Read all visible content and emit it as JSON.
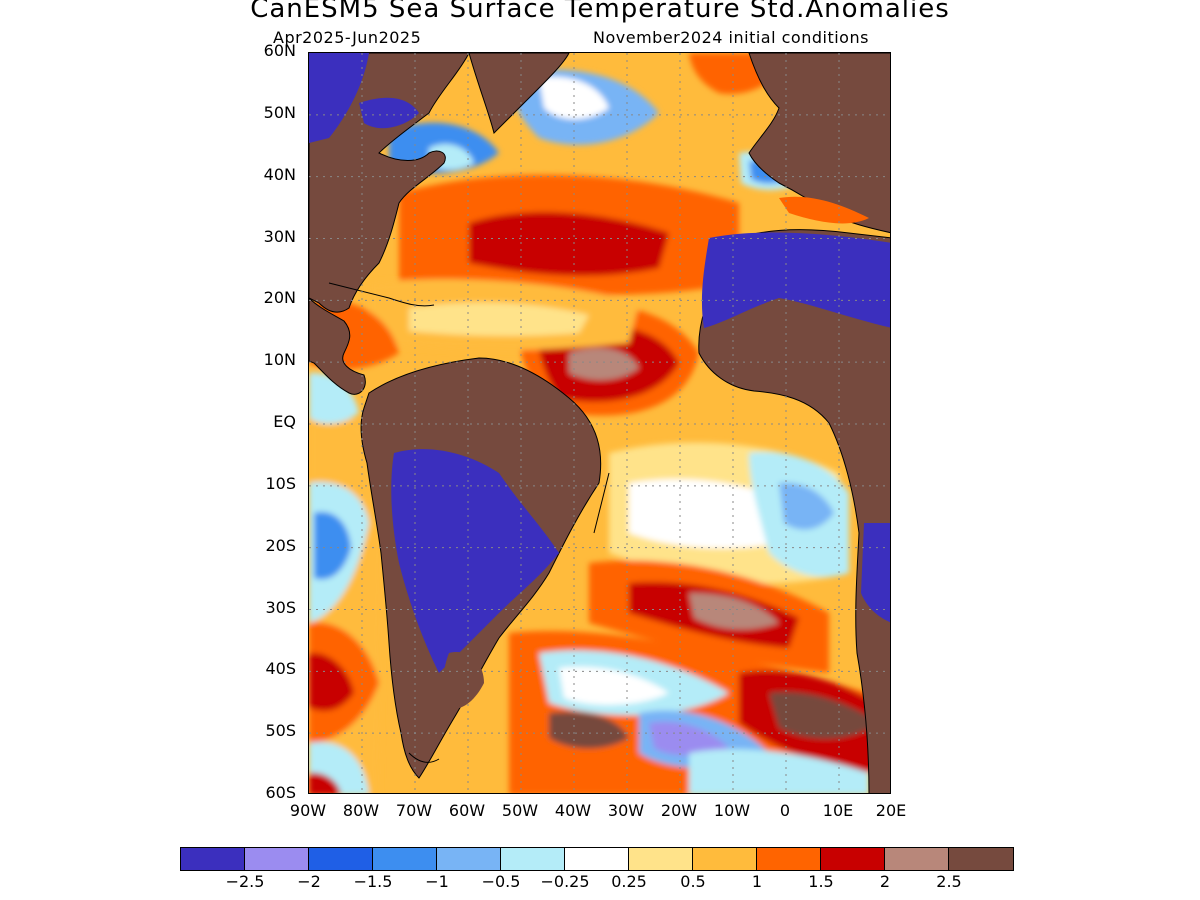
{
  "header": {
    "title": "CanESM5 Sea Surface Temperature Std.Anomalies",
    "period": "Apr2025-Jun2025",
    "initial_conditions": "November2024 initial conditions"
  },
  "axes": {
    "lat_labels": [
      "60N",
      "50N",
      "40N",
      "30N",
      "20N",
      "10N",
      "EQ",
      "10S",
      "20S",
      "30S",
      "40S",
      "50S",
      "60S"
    ],
    "lon_labels": [
      "90W",
      "80W",
      "70W",
      "60W",
      "50W",
      "40W",
      "30W",
      "20W",
      "10W",
      "0",
      "10E",
      "20E"
    ],
    "lat_range": [
      -60,
      60
    ],
    "lon_range": [
      -90,
      20
    ],
    "grid": "dotted"
  },
  "legend": {
    "colors": [
      "#3b2fbe",
      "#9b8cf0",
      "#1f5fe6",
      "#3d8ef0",
      "#78b4f5",
      "#b4ecf8",
      "#ffffff",
      "#ffe38a",
      "#ffbb3c",
      "#ff6400",
      "#c80000",
      "#b8877a",
      "#764a3e"
    ],
    "labels": [
      "−2.5",
      "−2",
      "−1.5",
      "−1",
      "−0.5",
      "−0.25",
      "0.25",
      "0.5",
      "1",
      "1.5",
      "2",
      "2.5"
    ]
  },
  "colors": {
    "land": "#764a3e",
    "coastline": "#000000"
  }
}
